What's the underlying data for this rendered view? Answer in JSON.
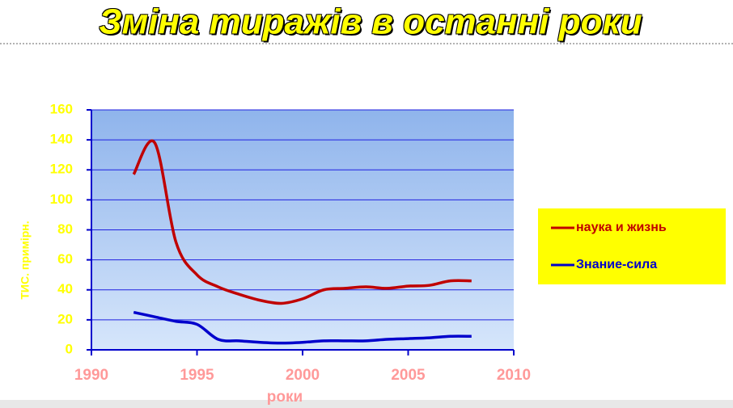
{
  "chart_data": {
    "type": "line",
    "title": "Зміна тиражів в останні роки",
    "x_label": "роки",
    "y_label": "ТИС. примірн.",
    "x": [
      1992,
      1993,
      1994,
      1995,
      1996,
      1997,
      1998,
      1999,
      2000,
      2001,
      2002,
      2003,
      2004,
      2005,
      2006,
      2007,
      2008
    ],
    "series": [
      {
        "name": "наука и жизнь",
        "color": "#c00000",
        "values": [
          117,
          138,
          72,
          50,
          42,
          37,
          33,
          31,
          34,
          40,
          41,
          42,
          41,
          42.5,
          43,
          46,
          46
        ]
      },
      {
        "name": "Знание-сила",
        "color": "#0000cc",
        "values": [
          25,
          22,
          19,
          17,
          7,
          6,
          5,
          4.5,
          5,
          6,
          6,
          6,
          7,
          7.5,
          8,
          9,
          9
        ]
      }
    ],
    "xlim": [
      1990,
      2010
    ],
    "xticks": [
      1990,
      1995,
      2000,
      2005,
      2010
    ],
    "ylim": [
      0,
      160
    ],
    "yticks": [
      0,
      20,
      40,
      60,
      80,
      100,
      120,
      140,
      160
    ],
    "grid": true,
    "legend": "right"
  }
}
